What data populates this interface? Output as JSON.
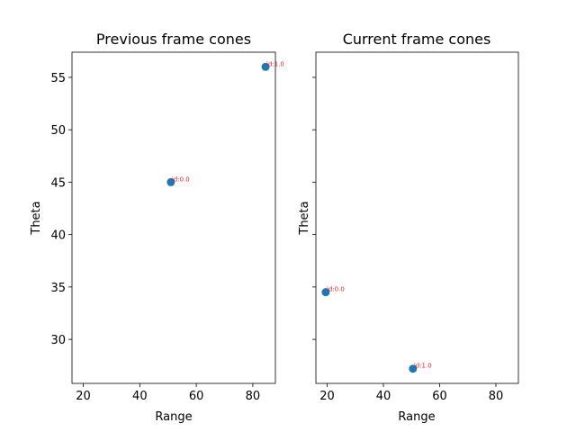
{
  "chart_data": [
    {
      "type": "scatter",
      "title": "Previous frame cones",
      "xlabel": "Range",
      "ylabel": "Theta",
      "xlim": [
        16,
        88
      ],
      "ylim": [
        25.8,
        57.4
      ],
      "xticks": [
        20,
        40,
        60,
        80
      ],
      "yticks": [
        30,
        35,
        40,
        45,
        50,
        55
      ],
      "show_ytick_labels": true,
      "grid": false,
      "points": [
        {
          "x": 51.0,
          "y": 45.0,
          "label": "id:0.0"
        },
        {
          "x": 84.5,
          "y": 56.0,
          "label": "id:1.0"
        }
      ]
    },
    {
      "type": "scatter",
      "title": "Current frame cones",
      "xlabel": "Range",
      "ylabel": "Theta",
      "xlim": [
        16,
        88
      ],
      "ylim": [
        25.8,
        57.4
      ],
      "xticks": [
        20,
        40,
        60,
        80
      ],
      "yticks": [
        30,
        35,
        40,
        45,
        50,
        55
      ],
      "show_ytick_labels": false,
      "grid": false,
      "points": [
        {
          "x": 19.5,
          "y": 34.5,
          "label": "id:0.0"
        },
        {
          "x": 50.5,
          "y": 27.2,
          "label": "id:1.0"
        }
      ]
    }
  ],
  "colors": {
    "marker": "#1f77b4",
    "point_label": "#d62728"
  }
}
